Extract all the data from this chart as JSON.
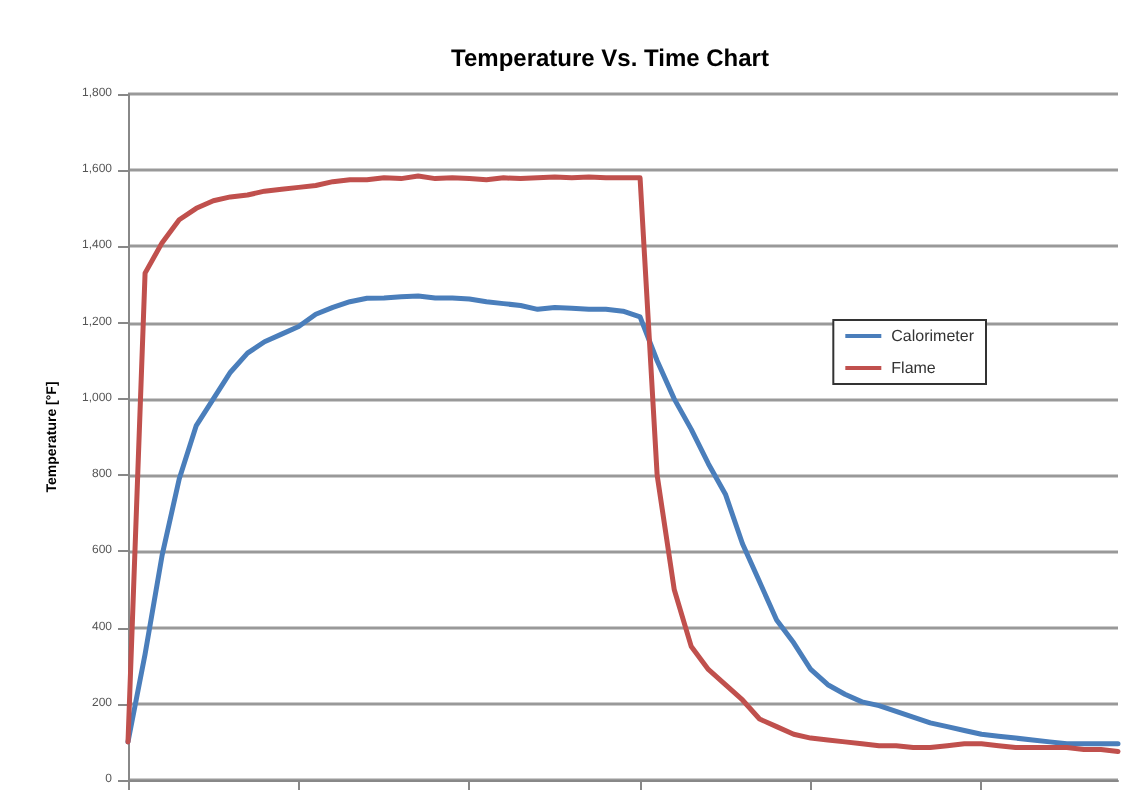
{
  "chart_data": {
    "type": "line",
    "title": "Temperature Vs. Time Chart",
    "ylabel": "Temperature [°F]",
    "categories": [
      null,
      null,
      null,
      null,
      null,
      null,
      null,
      null,
      null,
      null,
      null,
      null,
      null,
      null,
      null,
      null,
      null,
      null,
      null,
      null,
      null,
      null,
      null,
      null,
      null,
      null,
      null,
      null,
      null,
      null,
      null,
      null,
      null,
      null,
      null,
      null,
      null,
      null,
      null,
      null,
      null,
      null,
      null,
      null,
      null,
      null,
      null,
      null,
      null,
      null,
      null,
      null,
      null,
      null,
      null,
      null,
      null,
      null,
      null
    ],
    "series": [
      {
        "name": "Calorimeter",
        "color": "#4a7ebb",
        "values": [
          100,
          330,
          590,
          790,
          930,
          1000,
          1070,
          1120,
          1150,
          1170,
          1190,
          1222,
          1240,
          1255,
          1264,
          1265,
          1268,
          1270,
          1265,
          1265,
          1262,
          1255,
          1250,
          1245,
          1235,
          1240,
          1238,
          1235,
          1235,
          1230,
          1215,
          1100,
          1000,
          920,
          830,
          750,
          620,
          520,
          420,
          360,
          290,
          250,
          225,
          205,
          195,
          180,
          165,
          150,
          140,
          130,
          120,
          115,
          110,
          105,
          100,
          95,
          95,
          95,
          95
        ]
      },
      {
        "name": "Flame",
        "color": "#c0504d",
        "values": [
          100,
          1330,
          1410,
          1470,
          1500,
          1520,
          1530,
          1535,
          1545,
          1550,
          1555,
          1560,
          1570,
          1575,
          1575,
          1580,
          1578,
          1585,
          1578,
          1580,
          1578,
          1575,
          1580,
          1578,
          1580,
          1582,
          1580,
          1582,
          1580,
          1580,
          1580,
          800,
          500,
          350,
          290,
          250,
          210,
          160,
          140,
          120,
          110,
          105,
          100,
          95,
          90,
          90,
          85,
          85,
          90,
          95,
          95,
          90,
          85,
          85,
          85,
          85,
          80,
          80,
          75
        ]
      }
    ],
    "ylim": [
      0,
      1800
    ],
    "yticks": [
      0,
      200,
      400,
      600,
      800,
      {
        "value": 1000,
        "label": "1,000"
      },
      {
        "value": 1200,
        "label": "1,200"
      },
      {
        "value": 1400,
        "label": "1,400"
      },
      {
        "value": 1600,
        "label": "1,600"
      },
      {
        "value": 1800,
        "label": "1,800"
      }
    ],
    "grid": "y",
    "legend": "right",
    "marker": "none",
    "line_style": "solid"
  }
}
